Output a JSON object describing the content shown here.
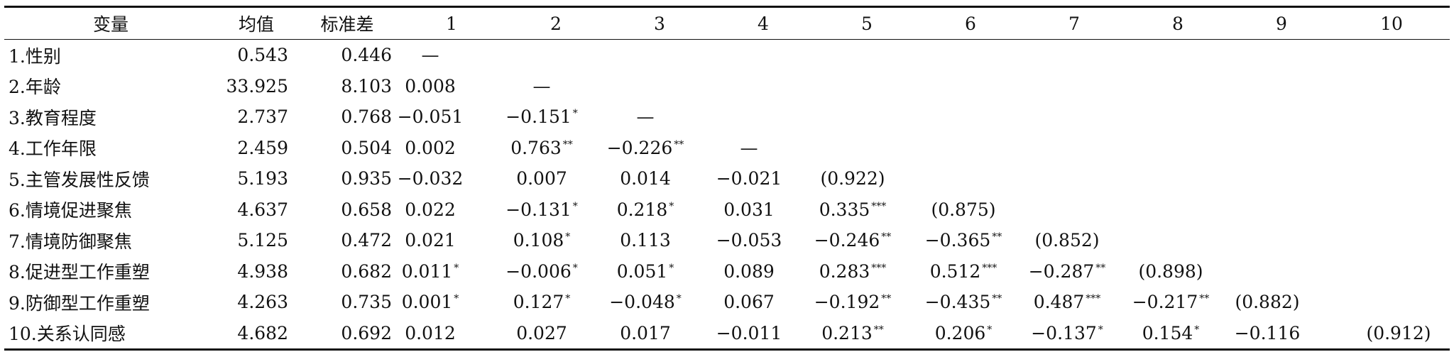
{
  "headers": [
    "变量",
    "均值",
    "标准差",
    "1",
    "2",
    "3",
    "4",
    "5",
    "6",
    "7",
    "8",
    "9",
    "10"
  ],
  "rows": [
    {
      "label": "1.性别",
      "mean": "0.543",
      "sd": "0.446",
      "cells": [
        {
          "v": "—",
          "s": ""
        },
        {
          "v": "",
          "s": ""
        },
        {
          "v": "",
          "s": ""
        },
        {
          "v": "",
          "s": ""
        },
        {
          "v": "",
          "s": ""
        },
        {
          "v": "",
          "s": ""
        },
        {
          "v": "",
          "s": ""
        },
        {
          "v": "",
          "s": ""
        },
        {
          "v": "",
          "s": ""
        },
        {
          "v": "",
          "s": ""
        }
      ]
    },
    {
      "label": "2.年龄",
      "mean": "33.925",
      "sd": "8.103",
      "cells": [
        {
          "v": "0.008",
          "s": ""
        },
        {
          "v": "—",
          "s": ""
        },
        {
          "v": "",
          "s": ""
        },
        {
          "v": "",
          "s": ""
        },
        {
          "v": "",
          "s": ""
        },
        {
          "v": "",
          "s": ""
        },
        {
          "v": "",
          "s": ""
        },
        {
          "v": "",
          "s": ""
        },
        {
          "v": "",
          "s": ""
        },
        {
          "v": "",
          "s": ""
        }
      ]
    },
    {
      "label": "3.教育程度",
      "mean": "2.737",
      "sd": "0.768",
      "cells": [
        {
          "v": "−0.051",
          "s": ""
        },
        {
          "v": "−0.151",
          "s": "*"
        },
        {
          "v": "—",
          "s": ""
        },
        {
          "v": "",
          "s": ""
        },
        {
          "v": "",
          "s": ""
        },
        {
          "v": "",
          "s": ""
        },
        {
          "v": "",
          "s": ""
        },
        {
          "v": "",
          "s": ""
        },
        {
          "v": "",
          "s": ""
        },
        {
          "v": "",
          "s": ""
        }
      ]
    },
    {
      "label": "4.工作年限",
      "mean": "2.459",
      "sd": "0.504",
      "cells": [
        {
          "v": "0.002",
          "s": ""
        },
        {
          "v": "0.763",
          "s": "**"
        },
        {
          "v": "−0.226",
          "s": "**"
        },
        {
          "v": "—",
          "s": ""
        },
        {
          "v": "",
          "s": ""
        },
        {
          "v": "",
          "s": ""
        },
        {
          "v": "",
          "s": ""
        },
        {
          "v": "",
          "s": ""
        },
        {
          "v": "",
          "s": ""
        },
        {
          "v": "",
          "s": ""
        }
      ]
    },
    {
      "label": "5.主管发展性反馈",
      "mean": "5.193",
      "sd": "0.935",
      "cells": [
        {
          "v": "−0.032",
          "s": ""
        },
        {
          "v": "0.007",
          "s": ""
        },
        {
          "v": "0.014",
          "s": ""
        },
        {
          "v": "−0.021",
          "s": ""
        },
        {
          "v": "(0.922)",
          "s": ""
        },
        {
          "v": "",
          "s": ""
        },
        {
          "v": "",
          "s": ""
        },
        {
          "v": "",
          "s": ""
        },
        {
          "v": "",
          "s": ""
        },
        {
          "v": "",
          "s": ""
        }
      ]
    },
    {
      "label": "6.情境促进聚焦",
      "mean": "4.637",
      "sd": "0.658",
      "cells": [
        {
          "v": "0.022",
          "s": ""
        },
        {
          "v": "−0.131",
          "s": "*"
        },
        {
          "v": "0.218",
          "s": "*"
        },
        {
          "v": "0.031",
          "s": ""
        },
        {
          "v": "0.335",
          "s": "***"
        },
        {
          "v": "(0.875)",
          "s": ""
        },
        {
          "v": "",
          "s": ""
        },
        {
          "v": "",
          "s": ""
        },
        {
          "v": "",
          "s": ""
        },
        {
          "v": "",
          "s": ""
        }
      ]
    },
    {
      "label": "7.情境防御聚焦",
      "mean": "5.125",
      "sd": "0.472",
      "cells": [
        {
          "v": "0.021",
          "s": ""
        },
        {
          "v": "0.108",
          "s": "*"
        },
        {
          "v": "0.113",
          "s": ""
        },
        {
          "v": "−0.053",
          "s": ""
        },
        {
          "v": "−0.246",
          "s": "**"
        },
        {
          "v": "−0.365",
          "s": "**"
        },
        {
          "v": "(0.852)",
          "s": ""
        },
        {
          "v": "",
          "s": ""
        },
        {
          "v": "",
          "s": ""
        },
        {
          "v": "",
          "s": ""
        }
      ]
    },
    {
      "label": "8.促进型工作重塑",
      "mean": "4.938",
      "sd": "0.682",
      "cells": [
        {
          "v": "0.011",
          "s": "*"
        },
        {
          "v": "−0.006",
          "s": "*"
        },
        {
          "v": "0.051",
          "s": "*"
        },
        {
          "v": "0.089",
          "s": ""
        },
        {
          "v": "0.283",
          "s": "***"
        },
        {
          "v": "0.512",
          "s": "***"
        },
        {
          "v": "−0.287",
          "s": "**"
        },
        {
          "v": "(0.898)",
          "s": ""
        },
        {
          "v": "",
          "s": ""
        },
        {
          "v": "",
          "s": ""
        }
      ]
    },
    {
      "label": "9.防御型工作重塑",
      "mean": "4.263",
      "sd": "0.735",
      "cells": [
        {
          "v": "0.001",
          "s": "*"
        },
        {
          "v": "0.127",
          "s": "*"
        },
        {
          "v": "−0.048",
          "s": "*"
        },
        {
          "v": "0.067",
          "s": ""
        },
        {
          "v": "−0.192",
          "s": "**"
        },
        {
          "v": "−0.435",
          "s": "**"
        },
        {
          "v": "0.487",
          "s": "***"
        },
        {
          "v": "−0.217",
          "s": "**"
        },
        {
          "v": "(0.882)",
          "s": ""
        },
        {
          "v": "",
          "s": ""
        }
      ]
    },
    {
      "label": "10.关系认同感",
      "mean": "4.682",
      "sd": "0.692",
      "cells": [
        {
          "v": "0.012",
          "s": ""
        },
        {
          "v": "0.027",
          "s": ""
        },
        {
          "v": "0.017",
          "s": ""
        },
        {
          "v": "−0.011",
          "s": ""
        },
        {
          "v": "0.213",
          "s": "**"
        },
        {
          "v": "0.206",
          "s": "*"
        },
        {
          "v": "−0.137",
          "s": "*"
        },
        {
          "v": "0.154",
          "s": "*"
        },
        {
          "v": "−0.116",
          "s": ""
        },
        {
          "v": "(0.912)",
          "s": ""
        }
      ]
    }
  ]
}
